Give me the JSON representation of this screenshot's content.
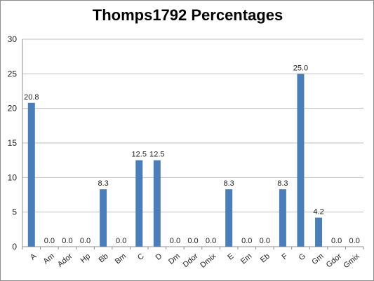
{
  "chart_data": {
    "type": "bar",
    "title": "Thomps1792 Percentages",
    "categories": [
      "A",
      "Am",
      "Ador",
      "Hp",
      "Bb",
      "Bm",
      "C",
      "D",
      "Dm",
      "Ddor",
      "Dmix",
      "E",
      "Em",
      "Eb",
      "F",
      "G",
      "Gm",
      "Gdor",
      "Gmix"
    ],
    "values": [
      20.8,
      0.0,
      0.0,
      0.0,
      8.3,
      0.0,
      12.5,
      12.5,
      0.0,
      0.0,
      0.0,
      8.3,
      0.0,
      0.0,
      8.3,
      25.0,
      4.2,
      0.0,
      0.0
    ],
    "data_labels": [
      "20.8",
      "0.0",
      "0.0",
      "0.0",
      "8.3",
      "0.0",
      "12.5",
      "12.5",
      "0.0",
      "0.0",
      "0.0",
      "8.3",
      "0.0",
      "0.0",
      "8.3",
      "25.0",
      "4.2",
      "0.0",
      "0.0"
    ],
    "ylim": [
      0,
      30
    ],
    "yticks": [
      "0",
      "5",
      "10",
      "15",
      "20",
      "25",
      "30"
    ],
    "grid": true,
    "legend": "none",
    "bar_color": "#4a7ebb"
  }
}
